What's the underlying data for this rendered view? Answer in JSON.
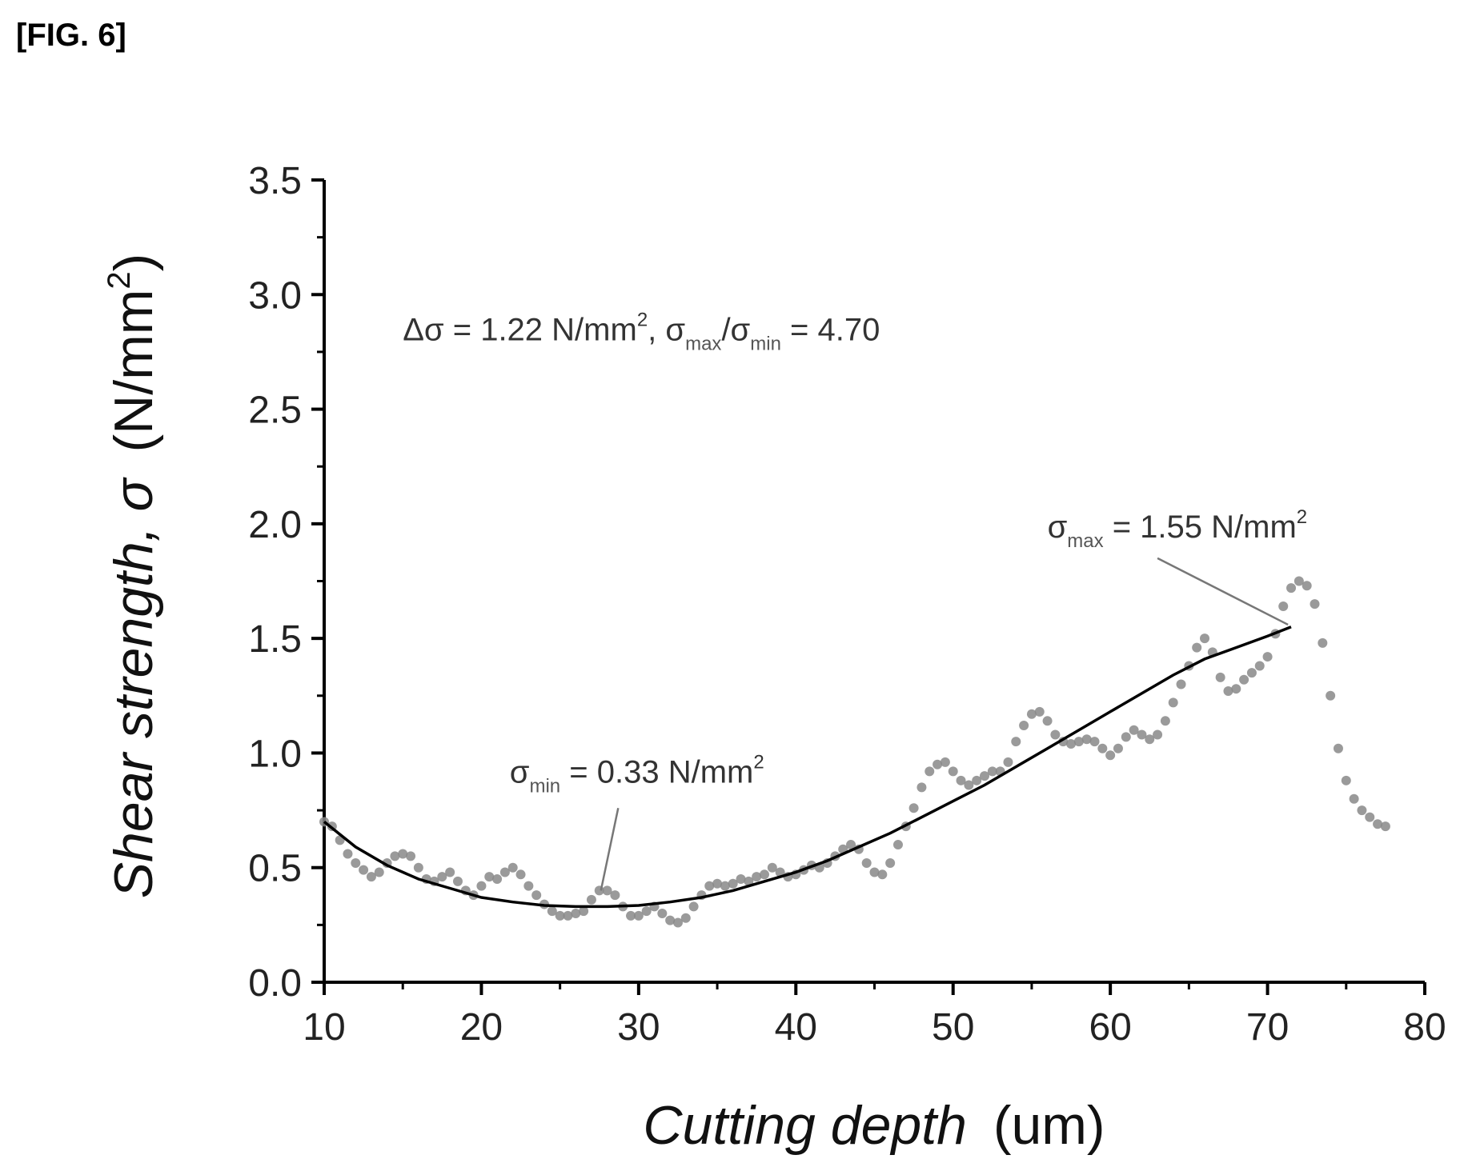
{
  "figure_label": "[FIG. 6]",
  "chart_data": {
    "type": "scatter",
    "xlabel_italic": "Cutting depth",
    "xlabel_unit": "(um)",
    "ylabel_italic": "Shear strength, σ",
    "ylabel_unit": "(N/mm",
    "ylabel_unit_sup": "2",
    "ylabel_unit_close": ")",
    "xlim": [
      10,
      80
    ],
    "ylim": [
      0.0,
      3.5
    ],
    "x_ticks": [
      10,
      20,
      30,
      40,
      50,
      60,
      70,
      80
    ],
    "x_tick_labels": [
      "10",
      "20",
      "30",
      "40",
      "50",
      "60",
      "70",
      "80"
    ],
    "y_ticks": [
      0.0,
      0.5,
      1.0,
      1.5,
      2.0,
      2.5,
      3.0,
      3.5
    ],
    "y_tick_labels": [
      "0.0",
      "0.5",
      "1.0",
      "1.5",
      "2.0",
      "2.5",
      "3.0",
      "3.5"
    ],
    "grid": false,
    "measured_color": "#888888",
    "fit_color": "#000000",
    "series": [
      {
        "role": "measured",
        "style": "dots",
        "points": [
          [
            10.0,
            0.7
          ],
          [
            10.5,
            0.68
          ],
          [
            11.0,
            0.62
          ],
          [
            11.5,
            0.56
          ],
          [
            12.0,
            0.52
          ],
          [
            12.5,
            0.49
          ],
          [
            13.0,
            0.46
          ],
          [
            13.5,
            0.48
          ],
          [
            14.0,
            0.52
          ],
          [
            14.5,
            0.55
          ],
          [
            15.0,
            0.56
          ],
          [
            15.5,
            0.55
          ],
          [
            16.0,
            0.5
          ],
          [
            16.5,
            0.45
          ],
          [
            17.0,
            0.44
          ],
          [
            17.5,
            0.46
          ],
          [
            18.0,
            0.48
          ],
          [
            18.5,
            0.44
          ],
          [
            19.0,
            0.4
          ],
          [
            19.5,
            0.38
          ],
          [
            20.0,
            0.42
          ],
          [
            20.5,
            0.46
          ],
          [
            21.0,
            0.45
          ],
          [
            21.5,
            0.48
          ],
          [
            22.0,
            0.5
          ],
          [
            22.5,
            0.47
          ],
          [
            23.0,
            0.42
          ],
          [
            23.5,
            0.38
          ],
          [
            24.0,
            0.34
          ],
          [
            24.5,
            0.31
          ],
          [
            25.0,
            0.29
          ],
          [
            25.5,
            0.29
          ],
          [
            26.0,
            0.3
          ],
          [
            26.5,
            0.31
          ],
          [
            27.0,
            0.36
          ],
          [
            27.5,
            0.4
          ],
          [
            28.0,
            0.4
          ],
          [
            28.5,
            0.38
          ],
          [
            29.0,
            0.33
          ],
          [
            29.5,
            0.29
          ],
          [
            30.0,
            0.29
          ],
          [
            30.5,
            0.31
          ],
          [
            31.0,
            0.33
          ],
          [
            31.5,
            0.3
          ],
          [
            32.0,
            0.27
          ],
          [
            32.5,
            0.26
          ],
          [
            33.0,
            0.28
          ],
          [
            33.5,
            0.33
          ],
          [
            34.0,
            0.38
          ],
          [
            34.5,
            0.42
          ],
          [
            35.0,
            0.43
          ],
          [
            35.5,
            0.42
          ],
          [
            36.0,
            0.43
          ],
          [
            36.5,
            0.45
          ],
          [
            37.0,
            0.44
          ],
          [
            37.5,
            0.46
          ],
          [
            38.0,
            0.47
          ],
          [
            38.5,
            0.5
          ],
          [
            39.0,
            0.48
          ],
          [
            39.5,
            0.46
          ],
          [
            40.0,
            0.47
          ],
          [
            40.5,
            0.49
          ],
          [
            41.0,
            0.51
          ],
          [
            41.5,
            0.5
          ],
          [
            42.0,
            0.52
          ],
          [
            42.5,
            0.55
          ],
          [
            43.0,
            0.58
          ],
          [
            43.5,
            0.6
          ],
          [
            44.0,
            0.58
          ],
          [
            44.5,
            0.52
          ],
          [
            45.0,
            0.48
          ],
          [
            45.5,
            0.47
          ],
          [
            46.0,
            0.52
          ],
          [
            46.5,
            0.6
          ],
          [
            47.0,
            0.68
          ],
          [
            47.5,
            0.76
          ],
          [
            48.0,
            0.85
          ],
          [
            48.5,
            0.92
          ],
          [
            49.0,
            0.95
          ],
          [
            49.5,
            0.96
          ],
          [
            50.0,
            0.92
          ],
          [
            50.5,
            0.88
          ],
          [
            51.0,
            0.86
          ],
          [
            51.5,
            0.88
          ],
          [
            52.0,
            0.9
          ],
          [
            52.5,
            0.92
          ],
          [
            53.0,
            0.92
          ],
          [
            53.5,
            0.96
          ],
          [
            54.0,
            1.05
          ],
          [
            54.5,
            1.12
          ],
          [
            55.0,
            1.17
          ],
          [
            55.5,
            1.18
          ],
          [
            56.0,
            1.14
          ],
          [
            56.5,
            1.08
          ],
          [
            57.0,
            1.05
          ],
          [
            57.5,
            1.04
          ],
          [
            58.0,
            1.05
          ],
          [
            58.5,
            1.06
          ],
          [
            59.0,
            1.05
          ],
          [
            59.5,
            1.02
          ],
          [
            60.0,
            0.99
          ],
          [
            60.5,
            1.02
          ],
          [
            61.0,
            1.07
          ],
          [
            61.5,
            1.1
          ],
          [
            62.0,
            1.08
          ],
          [
            62.5,
            1.06
          ],
          [
            63.0,
            1.08
          ],
          [
            63.5,
            1.14
          ],
          [
            64.0,
            1.22
          ],
          [
            64.5,
            1.3
          ],
          [
            65.0,
            1.38
          ],
          [
            65.5,
            1.46
          ],
          [
            66.0,
            1.5
          ],
          [
            66.5,
            1.44
          ],
          [
            67.0,
            1.33
          ],
          [
            67.5,
            1.27
          ],
          [
            68.0,
            1.28
          ],
          [
            68.5,
            1.32
          ],
          [
            69.0,
            1.35
          ],
          [
            69.5,
            1.38
          ],
          [
            70.0,
            1.42
          ],
          [
            70.5,
            1.52
          ],
          [
            71.0,
            1.64
          ],
          [
            71.5,
            1.72
          ],
          [
            72.0,
            1.75
          ],
          [
            72.5,
            1.73
          ],
          [
            73.0,
            1.65
          ],
          [
            73.5,
            1.48
          ],
          [
            74.0,
            1.25
          ],
          [
            74.5,
            1.02
          ],
          [
            75.0,
            0.88
          ],
          [
            75.5,
            0.8
          ],
          [
            76.0,
            0.75
          ],
          [
            76.5,
            0.72
          ],
          [
            77.0,
            0.69
          ],
          [
            77.5,
            0.68
          ]
        ]
      },
      {
        "role": "fit",
        "style": "line",
        "points": [
          [
            10,
            0.7
          ],
          [
            12,
            0.59
          ],
          [
            14,
            0.51
          ],
          [
            16,
            0.45
          ],
          [
            18,
            0.41
          ],
          [
            20,
            0.37
          ],
          [
            22,
            0.35
          ],
          [
            24,
            0.335
          ],
          [
            26,
            0.33
          ],
          [
            28,
            0.33
          ],
          [
            30,
            0.335
          ],
          [
            32,
            0.35
          ],
          [
            34,
            0.37
          ],
          [
            36,
            0.4
          ],
          [
            38,
            0.44
          ],
          [
            40,
            0.48
          ],
          [
            42,
            0.53
          ],
          [
            44,
            0.59
          ],
          [
            46,
            0.65
          ],
          [
            48,
            0.72
          ],
          [
            50,
            0.79
          ],
          [
            52,
            0.86
          ],
          [
            54,
            0.94
          ],
          [
            56,
            1.02
          ],
          [
            58,
            1.1
          ],
          [
            60,
            1.18
          ],
          [
            62,
            1.26
          ],
          [
            64,
            1.34
          ],
          [
            66,
            1.41
          ],
          [
            68,
            1.46
          ],
          [
            70,
            1.51
          ],
          [
            71.5,
            1.55
          ]
        ]
      }
    ],
    "annotations": [
      {
        "id": "delta",
        "x": 15.0,
        "y": 2.8,
        "pointer": null,
        "parts": [
          {
            "text": "Δσ = 1.22 N/mm"
          },
          {
            "text": "2",
            "sup": true
          },
          {
            "text": ",  σ"
          },
          {
            "text": "max",
            "sub": true
          },
          {
            "text": "/σ"
          },
          {
            "text": "min",
            "sub": true
          },
          {
            "text": " = 4.70"
          }
        ]
      },
      {
        "id": "sigma-max",
        "x": 56.0,
        "y": 1.94,
        "pointer": {
          "from": [
            63.0,
            1.85
          ],
          "to": [
            71.3,
            1.56
          ]
        },
        "parts": [
          {
            "text": "σ"
          },
          {
            "text": "max",
            "sub": true
          },
          {
            "text": " = 1.55 N/mm"
          },
          {
            "text": "2",
            "sup": true
          }
        ]
      },
      {
        "id": "sigma-min",
        "x": 21.8,
        "y": 0.87,
        "pointer": {
          "from": [
            28.7,
            0.76
          ],
          "to": [
            27.6,
            0.4
          ]
        },
        "parts": [
          {
            "text": "σ"
          },
          {
            "text": "min",
            "sub": true
          },
          {
            "text": " = 0.33 N/mm"
          },
          {
            "text": "2",
            "sup": true
          }
        ]
      }
    ]
  }
}
